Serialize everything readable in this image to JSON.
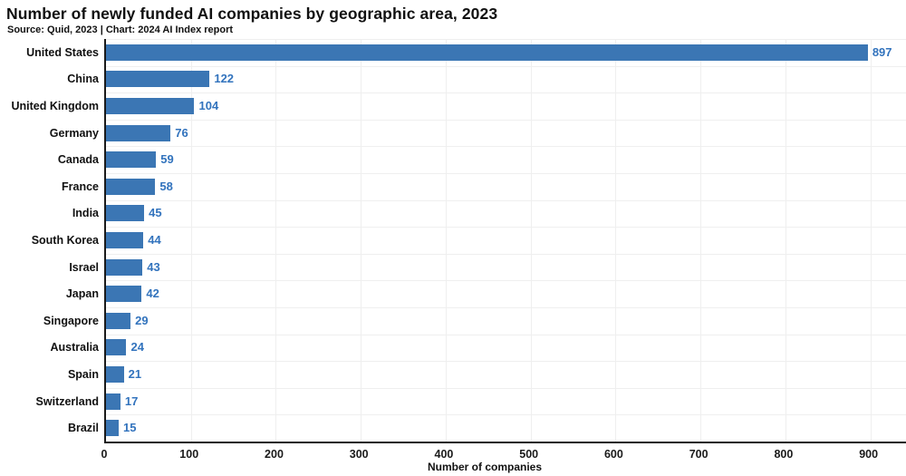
{
  "chart_data": {
    "type": "bar",
    "orientation": "horizontal",
    "title": "Number of newly funded AI companies by geographic area, 2023",
    "subtitle": "Source: Quid, 2023 | Chart: 2024 AI Index report",
    "categories": [
      "United States",
      "China",
      "United Kingdom",
      "Germany",
      "Canada",
      "France",
      "India",
      "South Korea",
      "Israel",
      "Japan",
      "Singapore",
      "Australia",
      "Spain",
      "Switzerland",
      "Brazil"
    ],
    "values": [
      897,
      122,
      104,
      76,
      59,
      58,
      45,
      44,
      43,
      42,
      29,
      24,
      21,
      17,
      15
    ],
    "xlabel": "Number of companies",
    "ylabel": "",
    "xlim": [
      0,
      942
    ],
    "xticks": [
      0,
      100,
      200,
      300,
      400,
      500,
      600,
      700,
      800,
      900
    ],
    "grid": true,
    "legend": false,
    "value_labels": true
  },
  "colors": {
    "bar": "#3b76b4",
    "value_label": "#3273bd",
    "axis": "#1a1a1a",
    "grid": "#efefef",
    "text": "#111111",
    "background": "#ffffff"
  }
}
